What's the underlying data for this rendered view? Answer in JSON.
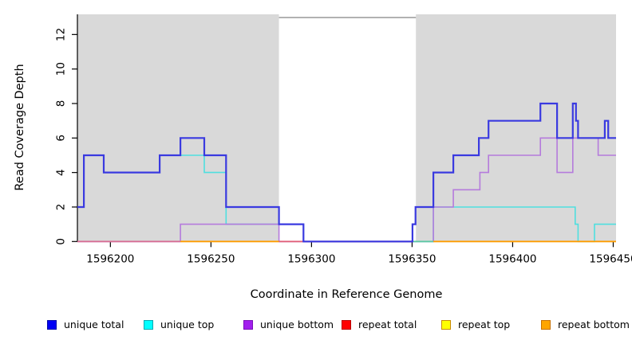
{
  "chart_data": {
    "type": "line",
    "step": true,
    "title": "",
    "xlabel": "Coordinate in Reference Genome",
    "ylabel": "Read Coverage Depth",
    "xlim": [
      1596183.6,
      1596451.4
    ],
    "ylim": [
      0,
      13.17
    ],
    "grid": false,
    "x_ticks": [
      {
        "value": 1596200,
        "label": "1596200"
      },
      {
        "value": 1596250,
        "label": "1596250"
      },
      {
        "value": 1596300,
        "label": "1596300"
      },
      {
        "value": 1596350,
        "label": "1596350"
      },
      {
        "value": 1596400,
        "label": "1596400"
      },
      {
        "value": 1596450,
        "label": "1596450"
      }
    ],
    "y_ticks": [
      {
        "value": 0,
        "label": "0"
      },
      {
        "value": 2,
        "label": "2"
      },
      {
        "value": 4,
        "label": "4"
      },
      {
        "value": 6,
        "label": "6"
      },
      {
        "value": 8,
        "label": "8"
      },
      {
        "value": 10,
        "label": "10"
      },
      {
        "value": 12,
        "label": "12"
      }
    ],
    "shaded_regions": [
      {
        "from": 1596183.6,
        "to": 1596283.8,
        "color": "#d9d9d9"
      },
      {
        "from": 1596351.9,
        "to": 1596451.4,
        "color": "#d9d9d9"
      }
    ],
    "top_box_segment": {
      "from": 1596283.8,
      "to": 1596351.9,
      "color": "#848484"
    },
    "baseline_segments": [
      {
        "from": 1596183.6,
        "to": 1596234.8,
        "color": "#d76f95",
        "z": 6
      },
      {
        "from": 1596234.8,
        "to": 1596283.8,
        "color": "#ff9d00",
        "z": 6
      },
      {
        "from": 1596283.8,
        "to": 1596350.2,
        "color": "#e0607a",
        "z": 6
      },
      {
        "from": 1596350.2,
        "to": 1596360.6,
        "color": "#5ec9a4",
        "z": 6
      },
      {
        "from": 1596360.6,
        "to": 1596451.4,
        "color": "#ff9d00",
        "z": 6
      }
    ],
    "series": [
      {
        "name": "repeat total",
        "color": "#e0607a",
        "width": 1.5,
        "z": 1,
        "points": [
          [
            1596183.6,
            0
          ]
        ]
      },
      {
        "name": "repeat top",
        "color": "#ffe400",
        "width": 1.5,
        "z": 2,
        "points": [
          [
            1596183.6,
            0
          ]
        ]
      },
      {
        "name": "repeat bottom",
        "color": "#ff9d00",
        "width": 1.5,
        "z": 3,
        "points": [
          [
            1596183.6,
            0
          ]
        ]
      },
      {
        "name": "unique top",
        "color": "#4fdfdf",
        "width": 1.6,
        "z": 4,
        "points": [
          [
            1596183.6,
            2
          ],
          [
            1596186.8,
            5
          ],
          [
            1596196.7,
            4
          ],
          [
            1596224.5,
            5
          ],
          [
            1596246.7,
            4
          ],
          [
            1596257.5,
            1
          ],
          [
            1596296,
            0
          ],
          [
            1596360.6,
            2
          ],
          [
            1596431.1,
            1
          ],
          [
            1596432.5,
            0
          ],
          [
            1596440.7,
            1
          ]
        ]
      },
      {
        "name": "unique bottom",
        "color": "#b57bdc",
        "width": 1.6,
        "z": 5,
        "points": [
          [
            1596183.6,
            0
          ],
          [
            1596234.8,
            1
          ],
          [
            1596283.8,
            0
          ],
          [
            1596360.6,
            2
          ],
          [
            1596370.5,
            3
          ],
          [
            1596383.7,
            4
          ],
          [
            1596388,
            5
          ],
          [
            1596413.8,
            6
          ],
          [
            1596422.1,
            4
          ],
          [
            1596429.9,
            6
          ],
          [
            1596442.5,
            5
          ]
        ]
      },
      {
        "name": "unique total",
        "color": "#3a3ae0",
        "width": 2.2,
        "z": 7,
        "points": [
          [
            1596183.6,
            2
          ],
          [
            1596186.8,
            5
          ],
          [
            1596196.7,
            4
          ],
          [
            1596224.5,
            5
          ],
          [
            1596234.8,
            6
          ],
          [
            1596246.7,
            5
          ],
          [
            1596257.5,
            2
          ],
          [
            1596283.8,
            1
          ],
          [
            1596296,
            0
          ],
          [
            1596350.2,
            1
          ],
          [
            1596351.7,
            2
          ],
          [
            1596360.6,
            4
          ],
          [
            1596370.5,
            5
          ],
          [
            1596383.2,
            6
          ],
          [
            1596388,
            7
          ],
          [
            1596413.8,
            8
          ],
          [
            1596422.1,
            6
          ],
          [
            1596429.9,
            8
          ],
          [
            1596431.5,
            7
          ],
          [
            1596432.5,
            6
          ],
          [
            1596445.8,
            7
          ],
          [
            1596447.5,
            6
          ]
        ]
      }
    ],
    "legend": [
      {
        "label": "unique total",
        "fill": "#0000f5",
        "border": "#0008a8"
      },
      {
        "label": "unique top",
        "fill": "#00ffff",
        "border": "#00a8b0"
      },
      {
        "label": "unique bottom",
        "fill": "#a21fee",
        "border": "#7a10b8"
      },
      {
        "label": "repeat total",
        "fill": "#ff0000",
        "border": "#b80000"
      },
      {
        "label": "repeat top",
        "fill": "#ffff00",
        "border": "#c88a00"
      },
      {
        "label": "repeat bottom",
        "fill": "#ffa500",
        "border": "#c87000"
      }
    ],
    "legend_position": "bottom"
  }
}
